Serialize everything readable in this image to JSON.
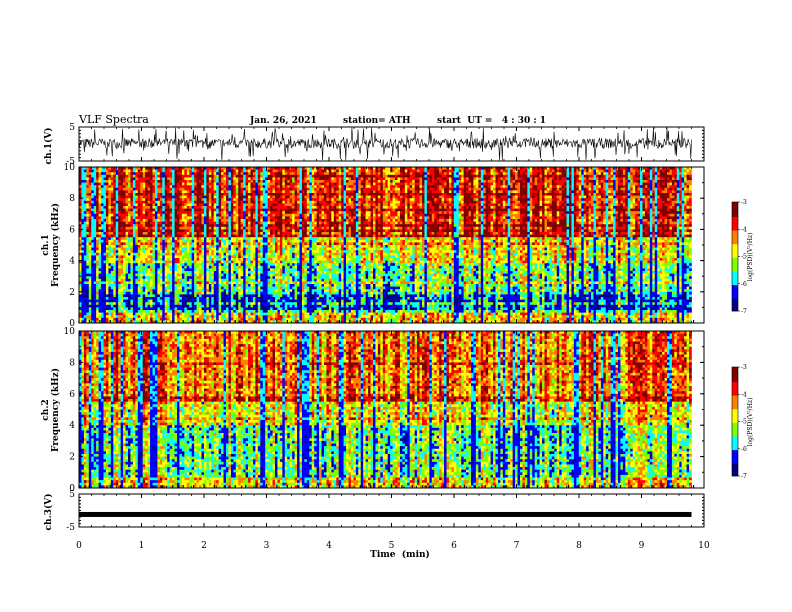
{
  "header": {
    "title": "VLF Spectra",
    "date": "Jan. 26, 2021",
    "station": "station= ATH",
    "start": "start  UT =   4 : 30 : 1"
  },
  "chart_data": [
    {
      "type": "line",
      "panel": "ch1-waveform",
      "ylabel": "ch.1(V)",
      "yticks": [
        "5",
        "-5"
      ],
      "ylim": [
        -5,
        5
      ],
      "x_range_min": [
        0,
        9.8
      ],
      "series": [
        {
          "values_description_mean": 0.2,
          "spread": 1.5
        }
      ]
    },
    {
      "type": "heatmap",
      "panel": "ch1-spectrogram",
      "ylabel": "ch.1\nFrequency  (kHz)",
      "ylabel_lines": [
        "ch.1",
        "Frequency  (kHz)"
      ],
      "yticks": [
        "0",
        "2",
        "4",
        "6",
        "8",
        "10"
      ],
      "ylim": [
        0,
        10
      ],
      "xlim": [
        0,
        10
      ],
      "colorbar": {
        "label": "log(PSD)(V²/Hz)",
        "ticks": [
          "-3",
          "-4",
          "-5",
          "-6",
          "-7"
        ],
        "range": [
          -7,
          -3
        ]
      }
    },
    {
      "type": "heatmap",
      "panel": "ch2-spectrogram",
      "ylabel_lines": [
        "ch.2",
        "Frequency  (kHz)"
      ],
      "yticks": [
        "0",
        "2",
        "4",
        "6",
        "8",
        "10"
      ],
      "ylim": [
        0,
        10
      ],
      "xlim": [
        0,
        10
      ],
      "colorbar": {
        "label": "log(PSD)(V²/Hz)",
        "ticks": [
          "-3",
          "-4",
          "-5",
          "-6",
          "-7"
        ],
        "range": [
          -7,
          -3
        ]
      }
    },
    {
      "type": "line",
      "panel": "ch3-waveform",
      "ylabel": "ch.3(V)",
      "yticks": [
        "5",
        "-5"
      ],
      "ylim": [
        -5,
        5
      ],
      "series": [
        {
          "constant_value": -1.2
        }
      ]
    }
  ],
  "xaxis": {
    "label": "Time  (min)",
    "ticks": [
      "0",
      "1",
      "2",
      "3",
      "4",
      "5",
      "6",
      "7",
      "8",
      "9",
      "10"
    ],
    "range": [
      0,
      10
    ],
    "data_end": 9.8
  },
  "colors": {
    "jet": [
      "#000080",
      "#0000ff",
      "#00ffff",
      "#80ff00",
      "#ffff00",
      "#ff8000",
      "#ff0000",
      "#800000"
    ],
    "background": "#ffffff",
    "ink": "#000000"
  }
}
